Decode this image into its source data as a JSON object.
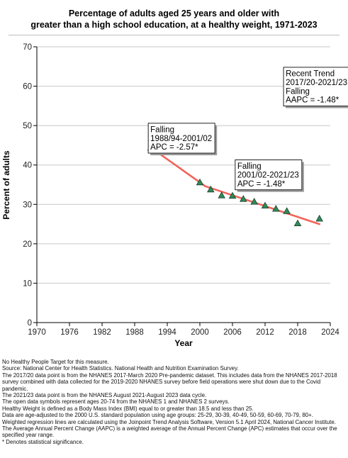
{
  "chart_data": {
    "type": "scatter",
    "title_lines": [
      "Percentage of adults aged 25 years and older with",
      "greater than a high school education, at a healthy weight, 1971-2023"
    ],
    "xlabel": "Year",
    "ylabel": "Percent of adults",
    "xlim": [
      1970,
      2024
    ],
    "ylim": [
      0,
      70
    ],
    "x_ticks": [
      1970,
      1976,
      1982,
      1988,
      1994,
      2000,
      2006,
      2012,
      2018,
      2024
    ],
    "y_ticks": [
      0,
      10,
      20,
      30,
      40,
      50,
      60,
      70
    ],
    "grid": "horizontal",
    "points": [
      {
        "x": 1991,
        "y": 44.4
      },
      {
        "x": 2000,
        "y": 35.6
      },
      {
        "x": 2002,
        "y": 33.8
      },
      {
        "x": 2004,
        "y": 32.3
      },
      {
        "x": 2006,
        "y": 32.2
      },
      {
        "x": 2008,
        "y": 31.4
      },
      {
        "x": 2010,
        "y": 30.7
      },
      {
        "x": 2012,
        "y": 29.7
      },
      {
        "x": 2014,
        "y": 28.9
      },
      {
        "x": 2016,
        "y": 28.3
      },
      {
        "x": 2018,
        "y": 25.2
      },
      {
        "x": 2022,
        "y": 26.4
      }
    ],
    "trend_segments": [
      {
        "points": [
          {
            "x": 1991,
            "y": 44.4
          },
          {
            "x": 2001,
            "y": 34.6
          }
        ]
      },
      {
        "points": [
          {
            "x": 2001,
            "y": 34.6
          },
          {
            "x": 2022,
            "y": 25.0
          }
        ]
      }
    ],
    "marker_color": "#2e8b57",
    "trend_color": "#f0645a",
    "annotations": [
      {
        "lines": [
          "Recent Trend",
          "2017/20-2021/23",
          "Falling",
          "AAPC = -1.48*"
        ],
        "anchor_x": 2015.4,
        "anchor_y": 64.8
      },
      {
        "lines": [
          "Falling",
          "1988/94-2001/02",
          "APC = -2.57*"
        ],
        "anchor_x": 1990.5,
        "anchor_y": 50.6
      },
      {
        "lines": [
          "Falling",
          "2001/02-2021/23",
          "APC = -1.48*"
        ],
        "anchor_x": 2006.5,
        "anchor_y": 41.3
      }
    ]
  },
  "notes": [
    "No Healthy People Target for this measure.",
    "Source: National Center for Health Statistics. National Health and Nutrition Examination Survey.",
    "The 2017/20 data point is from the NHANES 2017-March 2020 Pre-pandemic dataset. This includes data from the NHANES 2017-2018 survey combined with data collected for the 2019-2020 NHANES survey before field operations were shut down due to the Covid pandemic.",
    "The 2021/23 data point is from the NHANES August 2021-August 2023 data cycle.",
    "The open data symbols represent ages 20-74 from the NHANES 1 and NHANES 2 surveys.",
    "Healthy Weight is defined as a Body Mass Index (BMI) equal to or greater than 18.5 and less than 25.",
    "Data are age-adjusted to the 2000 U.S. standard population using age groups: 25-29, 30-39, 40-49, 50-59, 60-69, 70-79, 80+.",
    "Weighted regression lines are calculated using the Joinpoint Trend Analysis Software, Version 5.1 April 2024, National Cancer Institute.",
    "The Average Annual Percent Change (AAPC) is a weighted average of the Annual Percent Change (APC) estimates that occur over the specified year range.",
    "* Denotes statistical significance."
  ]
}
